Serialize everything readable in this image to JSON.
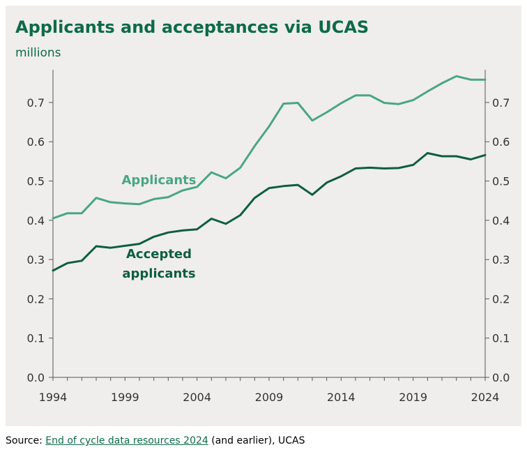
{
  "title": "Applicants and acceptances via UCAS",
  "unit_label": "millions",
  "source": {
    "prefix": "Source: ",
    "link_text": "End of cycle data resources 2024",
    "suffix": " (and earlier), UCAS"
  },
  "colors": {
    "applicants": "#4aa588",
    "accepted": "#0d5e3f",
    "title": "#0d6b47",
    "panel": "#efeeec"
  },
  "chart_data": {
    "type": "line",
    "title": "Applicants and acceptances via UCAS",
    "ylabel": "millions",
    "xlabel": "",
    "xlim": [
      1994,
      2024
    ],
    "ylim": [
      0,
      0.8
    ],
    "x_ticks": [
      1994,
      1999,
      2004,
      2009,
      2014,
      2019,
      2024
    ],
    "y_ticks": [
      0.0,
      0.1,
      0.2,
      0.3,
      0.4,
      0.5,
      0.6,
      0.7
    ],
    "y_tick_labels": [
      "0.0",
      "0.1",
      "0.2",
      "0.3",
      "0.4",
      "0.5",
      "0.6",
      "0.7"
    ],
    "x": [
      1994,
      1995,
      1996,
      1997,
      1998,
      1999,
      2000,
      2001,
      2002,
      2003,
      2004,
      2005,
      2006,
      2007,
      2008,
      2009,
      2010,
      2011,
      2012,
      2013,
      2014,
      2015,
      2016,
      2017,
      2018,
      2019,
      2020,
      2021,
      2022,
      2023,
      2024
    ],
    "series": [
      {
        "name": "Applicants",
        "label_lines": [
          "Applicants"
        ],
        "values": [
          0.405,
          0.418,
          0.418,
          0.457,
          0.446,
          0.443,
          0.441,
          0.454,
          0.459,
          0.476,
          0.485,
          0.522,
          0.507,
          0.534,
          0.589,
          0.639,
          0.697,
          0.699,
          0.654,
          0.675,
          0.698,
          0.718,
          0.718,
          0.699,
          0.696,
          0.706,
          0.728,
          0.749,
          0.767,
          0.758,
          0.758
        ]
      },
      {
        "name": "Accepted applicants",
        "label_lines": [
          "Accepted",
          "applicants"
        ],
        "values": [
          0.272,
          0.291,
          0.297,
          0.334,
          0.33,
          0.335,
          0.34,
          0.358,
          0.369,
          0.374,
          0.377,
          0.404,
          0.391,
          0.413,
          0.457,
          0.482,
          0.487,
          0.49,
          0.465,
          0.496,
          0.512,
          0.532,
          0.534,
          0.532,
          0.533,
          0.541,
          0.571,
          0.563,
          0.563,
          0.555,
          0.566
        ]
      }
    ]
  }
}
